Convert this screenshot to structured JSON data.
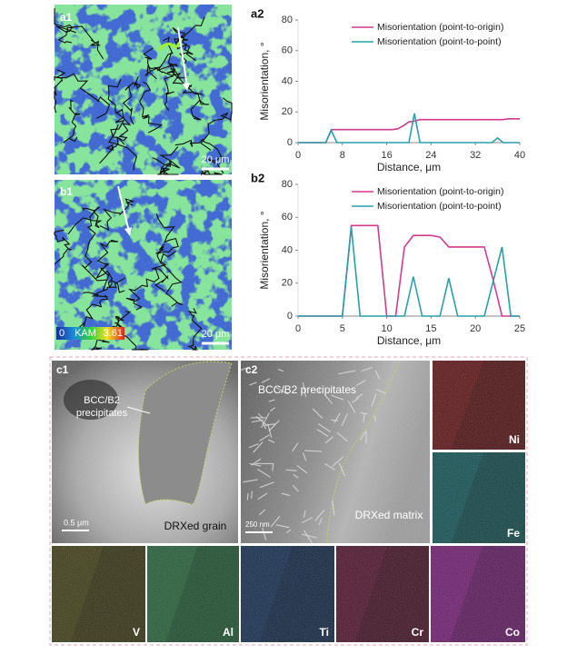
{
  "figure": {
    "a1": {
      "label": "a1",
      "scale_bar": "20 μm"
    },
    "b1": {
      "label": "b1",
      "scale_bar": "20 μm",
      "colorbar": {
        "min": 0,
        "name": "KAM",
        "max": 3.61
      }
    },
    "c1": {
      "label": "c1",
      "annotation": [
        "BCC/B2",
        "precipitates"
      ],
      "scale_bar": "0.5 μm",
      "region": "DRXed grain"
    },
    "c2": {
      "label": "c2",
      "annotation": "BCC/B2 precipitates",
      "scale_bar": "250 nm",
      "region": "DRXed matrix"
    },
    "maps": [
      "Ni",
      "Fe",
      "V",
      "Al",
      "Ti",
      "Cr",
      "Co"
    ]
  },
  "chart_data": [
    {
      "type": "line",
      "label": "a2",
      "x_label": "Distance, μm",
      "y_label": "Misorientation, °",
      "x": [
        0,
        1,
        2,
        3,
        4,
        5,
        6,
        7,
        8,
        9,
        10,
        11,
        12,
        13,
        14,
        15,
        16,
        17,
        18,
        19,
        20,
        21,
        22,
        23,
        24,
        25,
        26,
        27,
        28,
        29,
        30,
        31,
        32,
        33,
        34,
        35,
        36,
        37,
        38,
        39,
        40
      ],
      "series": [
        {
          "name": "Misorientation  (point-to-origin)",
          "color": "#d23a92",
          "values": [
            0,
            0,
            0,
            0,
            0,
            0,
            8.5,
            8.5,
            8.5,
            8.5,
            8.5,
            8.5,
            8.5,
            8.5,
            8.5,
            8.5,
            8.5,
            8.5,
            9,
            11,
            13.5,
            14,
            15,
            15,
            15,
            15,
            15,
            15,
            15,
            15,
            15,
            15,
            15,
            15,
            15,
            15,
            15,
            15,
            15.5,
            15.5,
            15.5
          ]
        },
        {
          "name": "Misorientation  (point-to-point)",
          "color": "#2a9fa8",
          "values": [
            0,
            0,
            0,
            0,
            0,
            0,
            8,
            0,
            0,
            0,
            0,
            0,
            0,
            0,
            0,
            0,
            0,
            0,
            0,
            0,
            0,
            19,
            0,
            0,
            0,
            0,
            0,
            0,
            0,
            0,
            0,
            0,
            0,
            0,
            0,
            0,
            3,
            0,
            0,
            0,
            0
          ]
        }
      ],
      "xlim": [
        0,
        40
      ],
      "xticks": [
        0,
        8,
        16,
        24,
        32,
        40
      ],
      "ylim": [
        0,
        80
      ],
      "yticks": [
        0,
        20,
        40,
        60,
        80
      ],
      "legend": "upper right"
    },
    {
      "type": "line",
      "label": "b2",
      "x_label": "Distance, μm",
      "y_label": "Misorientation, °",
      "x": [
        0,
        1,
        2,
        3,
        4,
        5,
        6,
        7,
        8,
        9,
        10,
        11,
        12,
        13,
        14,
        15,
        16,
        17,
        18,
        19,
        20,
        21,
        22,
        23,
        24,
        25
      ],
      "series": [
        {
          "name": "Misorientation  (point-to-origin)",
          "color": "#d23a92",
          "values": [
            0,
            0,
            0,
            0,
            0,
            0,
            55,
            55,
            55,
            55,
            0,
            0,
            42,
            49,
            49,
            49,
            48,
            42,
            42,
            42,
            42,
            42,
            22,
            0,
            0,
            0
          ]
        },
        {
          "name": "Misorientation  (point-to-point)",
          "color": "#2a9fa8",
          "values": [
            0,
            0,
            0,
            0,
            0,
            0,
            54,
            0,
            0,
            0,
            0,
            0,
            0,
            24,
            0,
            0,
            0,
            23,
            0,
            0,
            0,
            0,
            21,
            42,
            0,
            0
          ]
        }
      ],
      "xlim": [
        0,
        25
      ],
      "xticks": [
        0,
        5,
        10,
        15,
        20,
        25
      ],
      "ylim": [
        0,
        80
      ],
      "yticks": [
        0,
        20,
        40,
        60,
        80
      ],
      "legend": "upper right"
    }
  ]
}
